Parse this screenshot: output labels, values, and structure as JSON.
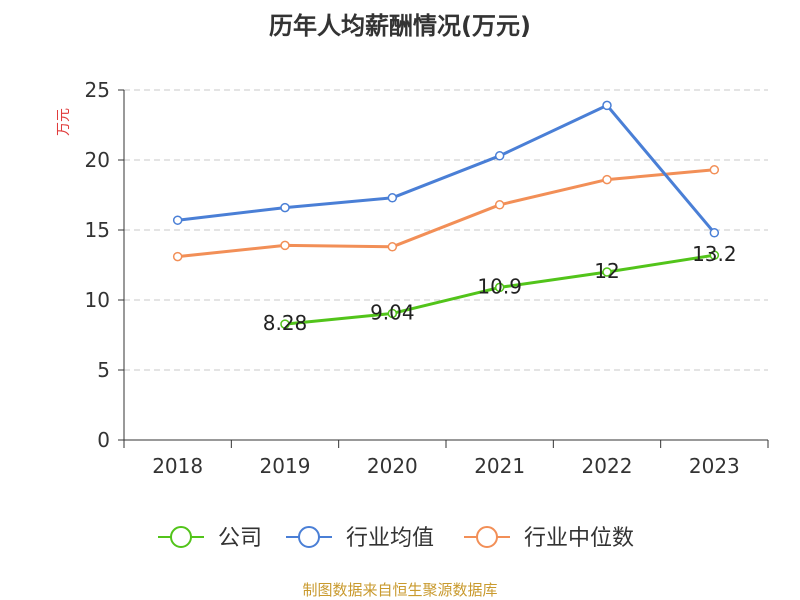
{
  "chart_data": {
    "type": "line",
    "title": "历年人均薪酬情况(万元)",
    "ylabel": "万元",
    "xlabel": "",
    "categories": [
      "2018",
      "2019",
      "2020",
      "2021",
      "2022",
      "2023"
    ],
    "ylim": [
      0,
      25
    ],
    "yticks": [
      0,
      5,
      10,
      15,
      20,
      25
    ],
    "grid": true,
    "legend_position": "bottom",
    "series": [
      {
        "name": "公司",
        "color": "#52c41a",
        "values": [
          null,
          8.28,
          9.04,
          10.9,
          12,
          13.2
        ],
        "labels": [
          "",
          "8.28",
          "9.04",
          "10.9",
          "12",
          "13.2"
        ]
      },
      {
        "name": "行业均值",
        "color": "#4a7fd6",
        "values": [
          15.7,
          16.6,
          17.3,
          20.3,
          23.9,
          14.8
        ],
        "labels": []
      },
      {
        "name": "行业中位数",
        "color": "#f28f57",
        "values": [
          13.1,
          13.9,
          13.8,
          16.8,
          18.6,
          19.3
        ],
        "labels": []
      }
    ]
  },
  "source_text": "制图数据来自恒生聚源数据库"
}
